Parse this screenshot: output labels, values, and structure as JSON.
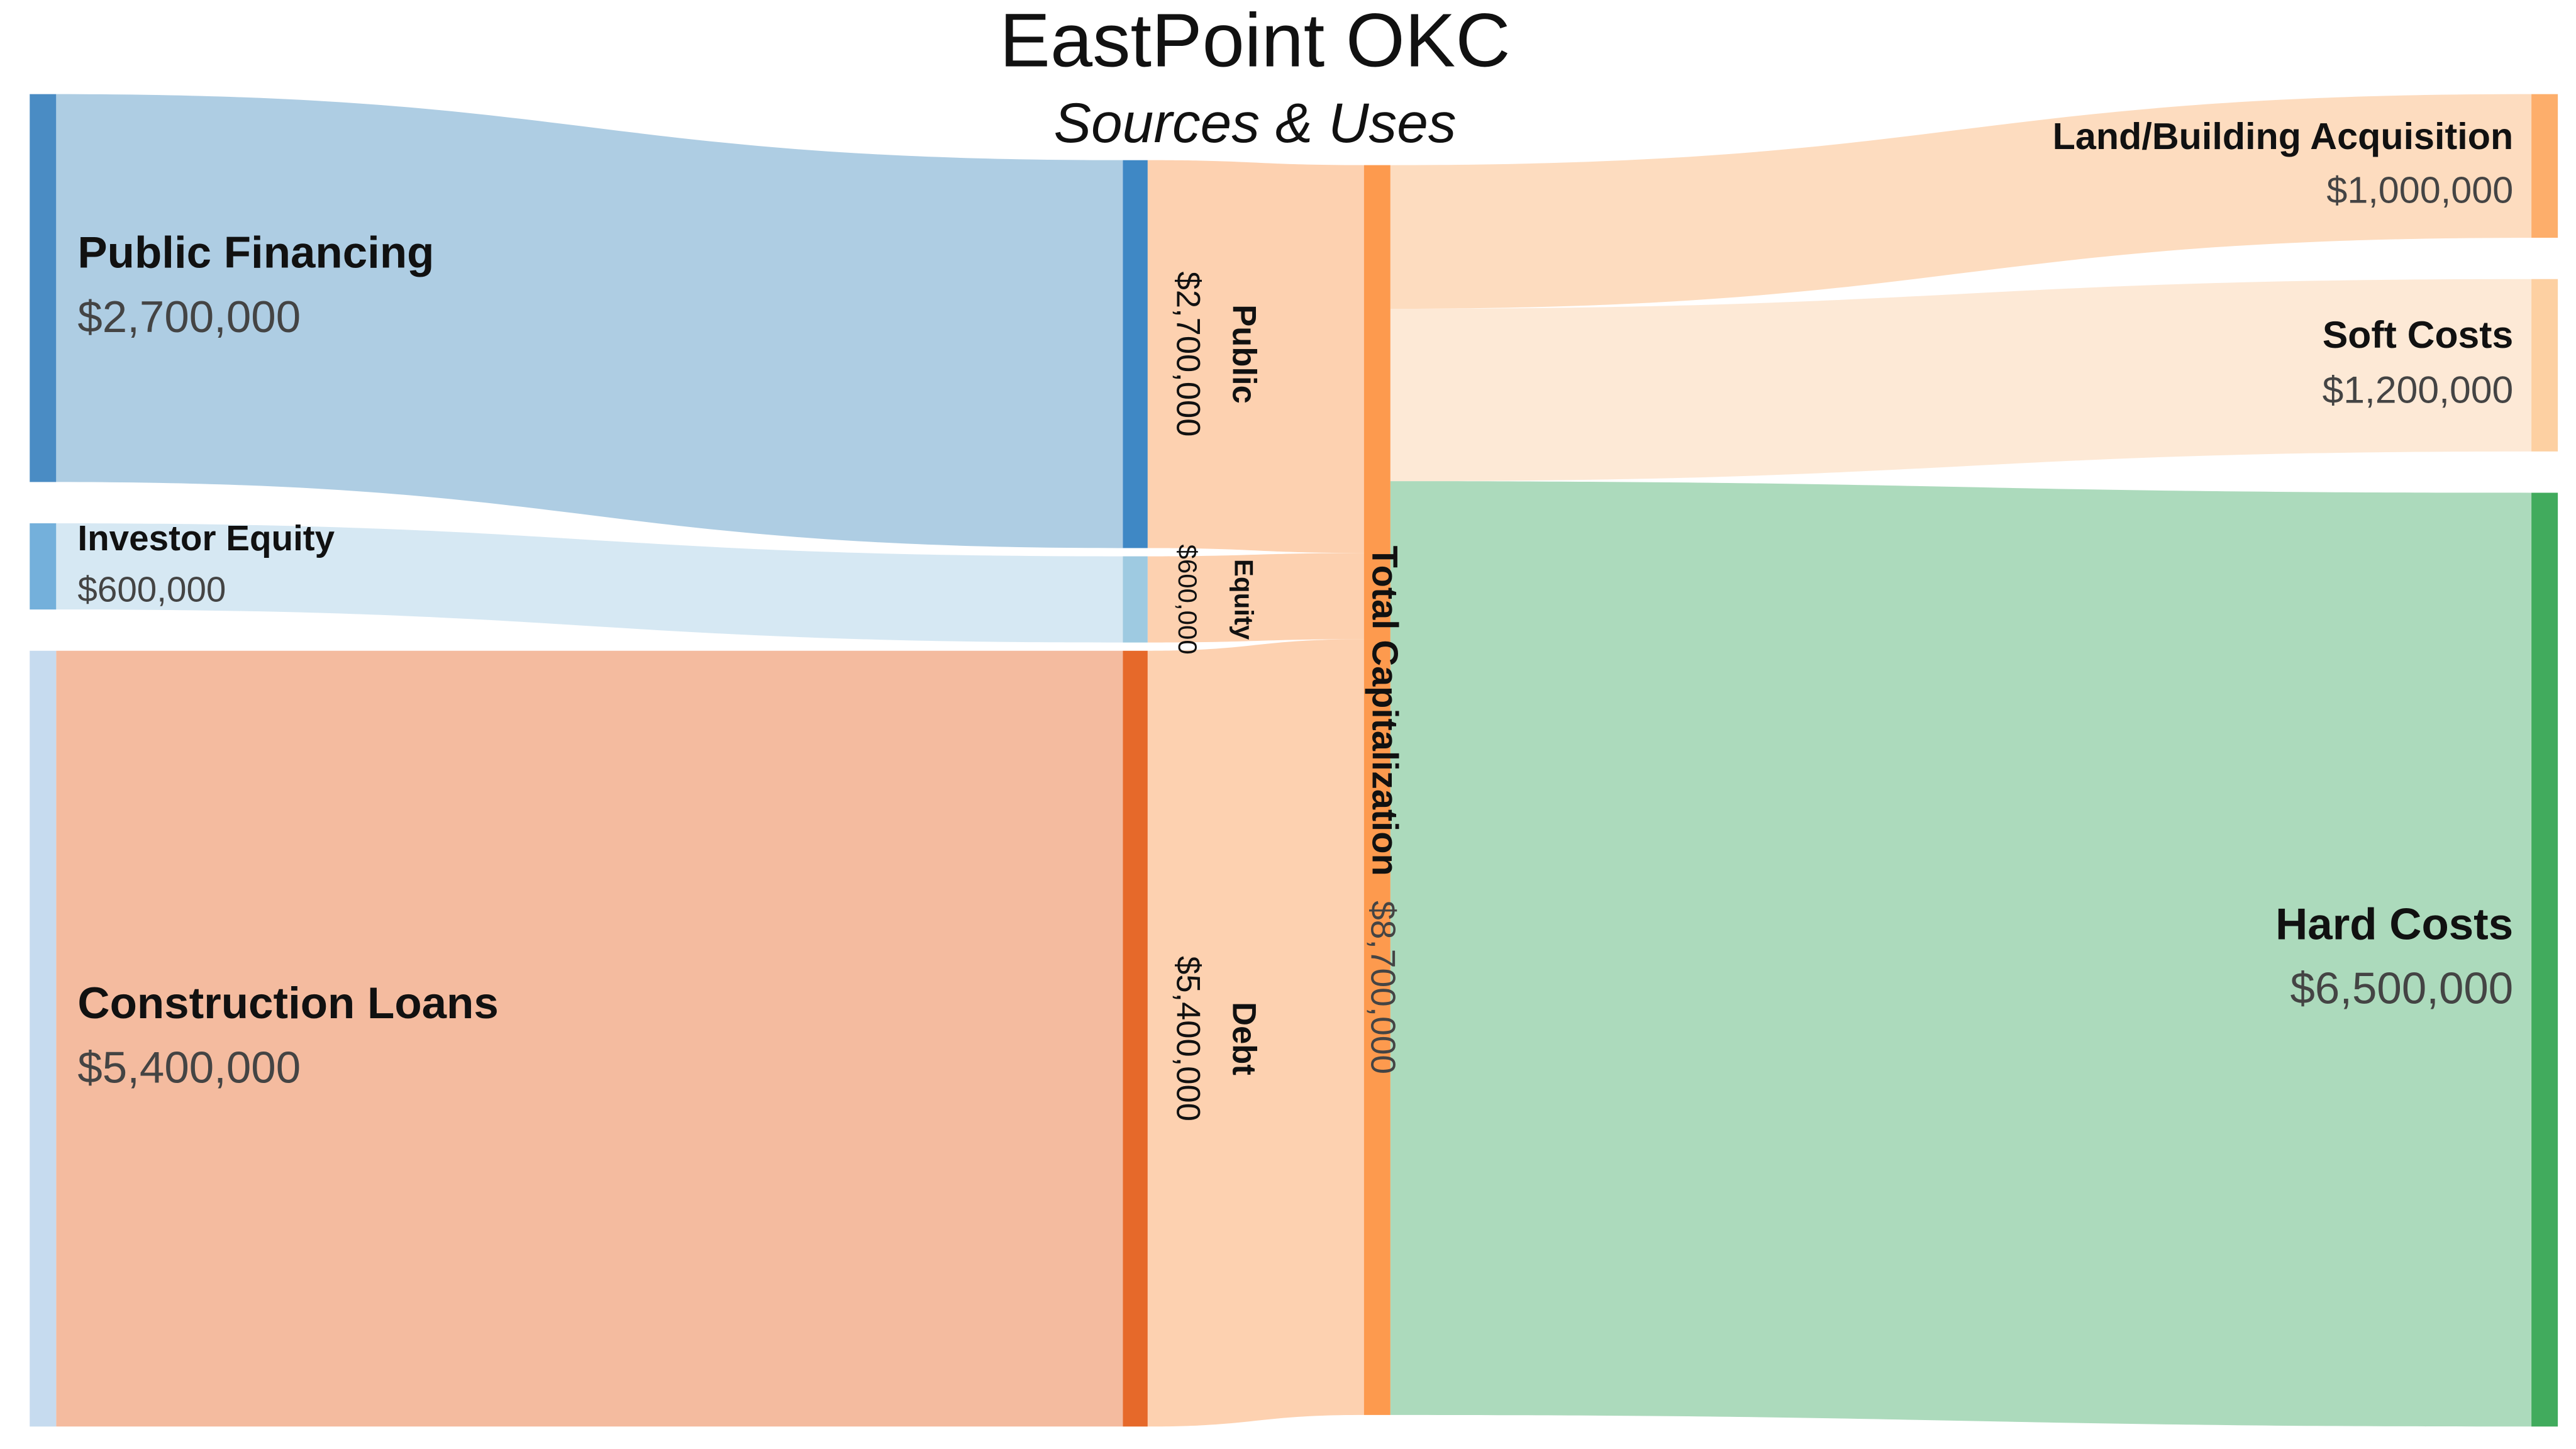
{
  "chart_data": {
    "type": "sankey",
    "title": "EastPoint OKC",
    "subtitle": "Sources & Uses",
    "nodes": [
      {
        "name": "Public Financing",
        "value": 2700000,
        "value_label": "$2,700,000",
        "color": "#4a8cc4"
      },
      {
        "name": "Investor Equity",
        "value": 600000,
        "value_label": "$600,000",
        "color": "#74b0db"
      },
      {
        "name": "Construction Loans",
        "value": 5400000,
        "value_label": "$5,400,000",
        "color": "#c6dbef"
      },
      {
        "name": "Public",
        "value": 2700000,
        "value_label": "$2,700,000",
        "color": "#3f88c5"
      },
      {
        "name": "Equity",
        "value": 600000,
        "value_label": "$600,000",
        "color": "#9ecae1"
      },
      {
        "name": "Debt",
        "value": 5400000,
        "value_label": "$5,400,000",
        "color": "#e6692a"
      },
      {
        "name": "Total Capitalization",
        "value": 8700000,
        "value_label": "$8,700,000",
        "color": "#fd9a4e"
      },
      {
        "name": "Land/Building Acquisition",
        "value": 1000000,
        "value_label": "$1,000,000",
        "color": "#fdae6b"
      },
      {
        "name": "Soft Costs",
        "value": 1200000,
        "value_label": "$1,200,000",
        "color": "#fdd0a2"
      },
      {
        "name": "Hard Costs",
        "value": 6500000,
        "value_label": "$6,500,000",
        "color": "#41ab5d"
      }
    ],
    "links": [
      {
        "source": 0,
        "target": 3,
        "value": 2700000,
        "color": "#aecde3"
      },
      {
        "source": 1,
        "target": 4,
        "value": 600000,
        "color": "#d6e8f3"
      },
      {
        "source": 2,
        "target": 5,
        "value": 5400000,
        "color": "#f4bb9f"
      },
      {
        "source": 3,
        "target": 6,
        "value": 2700000,
        "color": "#fdd1b0"
      },
      {
        "source": 4,
        "target": 6,
        "value": 600000,
        "color": "#fdd1b0"
      },
      {
        "source": 5,
        "target": 6,
        "value": 5400000,
        "color": "#fdd1b0"
      },
      {
        "source": 6,
        "target": 7,
        "value": 1000000,
        "color": "#fddcbf"
      },
      {
        "source": 6,
        "target": 8,
        "value": 1200000,
        "color": "#fde9d6"
      },
      {
        "source": 6,
        "target": 9,
        "value": 6500000,
        "color": "#acdabc"
      }
    ]
  }
}
